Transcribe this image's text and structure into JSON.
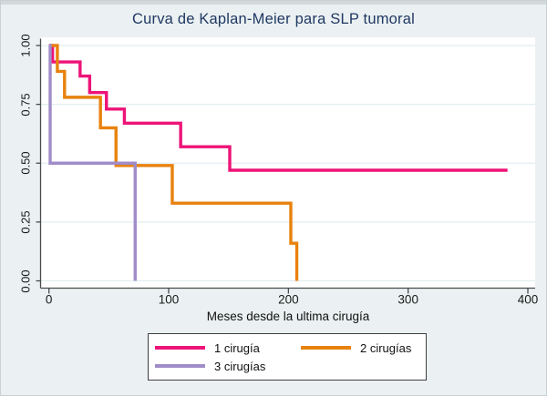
{
  "chart_data": {
    "type": "line",
    "subtype": "kaplan-meier-step",
    "title": "Curva de Kaplan-Meier para SLP tumoral",
    "xlabel": "Meses desde la ultima cirugía",
    "ylabel": "",
    "xlim": [
      0,
      400
    ],
    "ylim": [
      0.0,
      1.0
    ],
    "x_ticks": [
      0,
      100,
      200,
      300,
      400
    ],
    "y_ticks": [
      "1.00",
      "0.75",
      "0.50",
      "0.25",
      "0.00"
    ],
    "grid": "horizontal",
    "legend_position": "bottom-center",
    "series": [
      {
        "name": "1 cirugía",
        "color": "#ed1378",
        "start": [
          0,
          1.0
        ],
        "drops": [
          [
            3,
            0.93
          ],
          [
            26,
            0.87
          ],
          [
            34,
            0.8
          ],
          [
            48,
            0.73
          ],
          [
            63,
            0.67
          ],
          [
            110,
            0.57
          ],
          [
            151,
            0.47
          ]
        ],
        "end_x": 383
      },
      {
        "name": "2 cirugías",
        "color": "#e8820e",
        "start": [
          0,
          1.0
        ],
        "drops": [
          [
            7,
            0.89
          ],
          [
            13,
            0.78
          ],
          [
            43,
            0.65
          ],
          [
            56,
            0.49
          ],
          [
            103,
            0.33
          ],
          [
            202,
            0.16
          ],
          [
            207,
            0.0
          ]
        ],
        "end_x": 207
      },
      {
        "name": "3 cirugías",
        "color": "#a08cc8",
        "start": [
          0,
          1.0
        ],
        "drops": [
          [
            1,
            0.5
          ],
          [
            72,
            0.0
          ]
        ],
        "end_x": 72
      }
    ]
  },
  "colors": {
    "background": "#ebf1f2",
    "plot_background": "#ffffff",
    "gridline": "#e3edf0",
    "axis": "#4a4a4a",
    "title": "#203864"
  },
  "legend": {
    "items": [
      {
        "label": "1 cirugía",
        "color": "#ed1378"
      },
      {
        "label": "2 cirugías",
        "color": "#e8820e"
      },
      {
        "label": "3 cirugías",
        "color": "#a08cc8"
      }
    ]
  }
}
